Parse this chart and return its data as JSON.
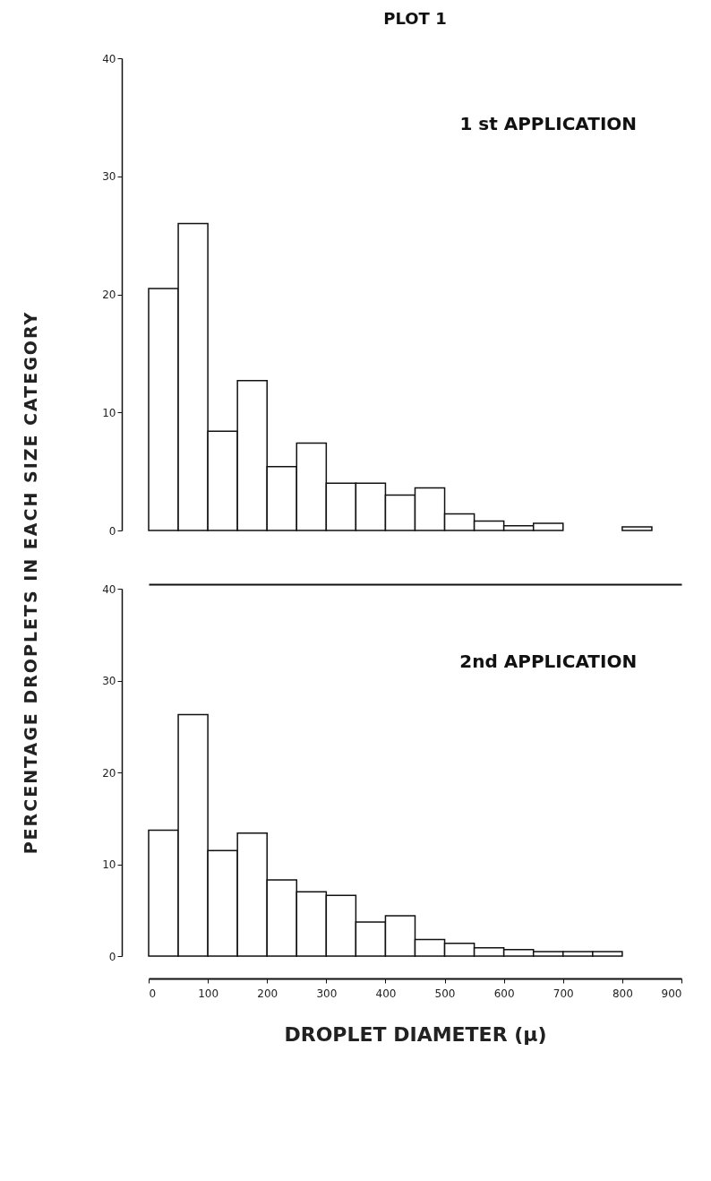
{
  "chart_data": [
    {
      "type": "histogram",
      "title": "PLOT 1",
      "ylabel": "PERCENTAGE DROPLETS IN EACH SIZE CATEGORY",
      "annotations": [
        "1 st APPLICATION"
      ],
      "bins": [
        0,
        50,
        100,
        150,
        200,
        250,
        300,
        350,
        400,
        450,
        500,
        550,
        600,
        650,
        700,
        750,
        800,
        850
      ],
      "values": [
        20.5,
        26.0,
        8.4,
        12.7,
        5.4,
        7.4,
        4.0,
        4.0,
        3.0,
        3.6,
        1.4,
        0.8,
        0.4,
        0.6,
        null,
        null,
        0.3
      ],
      "color": "#ffffff",
      "xlim": [
        0,
        900
      ],
      "ylim": [
        0,
        40
      ],
      "yticks": [
        0,
        10,
        20,
        30,
        40
      ],
      "tick_labels": "y",
      "grid": false
    },
    {
      "type": "histogram",
      "xlabel": "DROPLET DIAMETER (µ)",
      "annotations": [
        "2nd APPLICATION"
      ],
      "bins": [
        0,
        50,
        100,
        150,
        200,
        250,
        300,
        350,
        400,
        450,
        500,
        550,
        600,
        650,
        700,
        750,
        800
      ],
      "values": [
        13.7,
        26.3,
        11.5,
        13.4,
        8.3,
        7.0,
        6.6,
        3.7,
        4.4,
        1.8,
        1.4,
        0.9,
        0.7,
        0.5,
        0.5,
        0.5
      ],
      "color": "#ffffff",
      "xlim": [
        0,
        900
      ],
      "ylim": [
        0,
        40
      ],
      "xticks": [
        0,
        100,
        200,
        300,
        400,
        500,
        600,
        700,
        800,
        900
      ],
      "yticks": [
        0,
        10,
        20,
        30,
        40
      ],
      "grid": false
    }
  ]
}
